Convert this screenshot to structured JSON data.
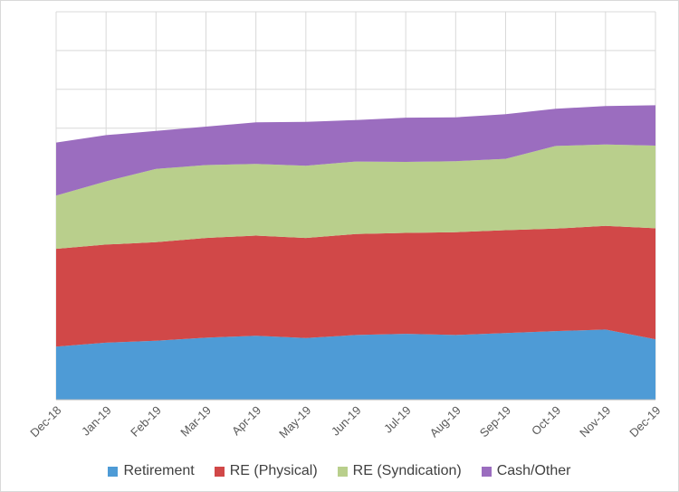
{
  "chart_data": {
    "type": "area",
    "stacked": true,
    "title": "",
    "xlabel": "",
    "ylabel": "",
    "categories": [
      "Dec-18",
      "Jan-19",
      "Feb-19",
      "Mar-19",
      "Apr-19",
      "May-19",
      "Jun-19",
      "Jul-19",
      "Aug-19",
      "Sep-19",
      "Oct-19",
      "Nov-19",
      "Dec-19"
    ],
    "ylim": [
      0,
      10
    ],
    "grid": true,
    "legend_position": "bottom",
    "y_tick_labels_shown": false,
    "series": [
      {
        "name": "Retirement",
        "color": "#4e9bd6",
        "values": [
          1.37,
          1.47,
          1.52,
          1.6,
          1.65,
          1.59,
          1.67,
          1.7,
          1.67,
          1.72,
          1.77,
          1.81,
          1.56
        ]
      },
      {
        "name": "RE (Physical)",
        "color": "#d14848",
        "values": [
          2.52,
          2.53,
          2.54,
          2.57,
          2.58,
          2.58,
          2.6,
          2.6,
          2.65,
          2.65,
          2.64,
          2.67,
          2.86
        ]
      },
      {
        "name": "RE (Syndication)",
        "color": "#b9cf8c",
        "values": [
          1.37,
          1.63,
          1.89,
          1.88,
          1.85,
          1.86,
          1.87,
          1.83,
          1.83,
          1.84,
          2.13,
          2.1,
          2.13
        ]
      },
      {
        "name": "Cash/Other",
        "color": "#9b6dbf",
        "values": [
          1.37,
          1.19,
          0.98,
          0.99,
          1.07,
          1.13,
          1.07,
          1.14,
          1.13,
          1.15,
          0.96,
          0.99,
          1.04
        ]
      }
    ]
  }
}
